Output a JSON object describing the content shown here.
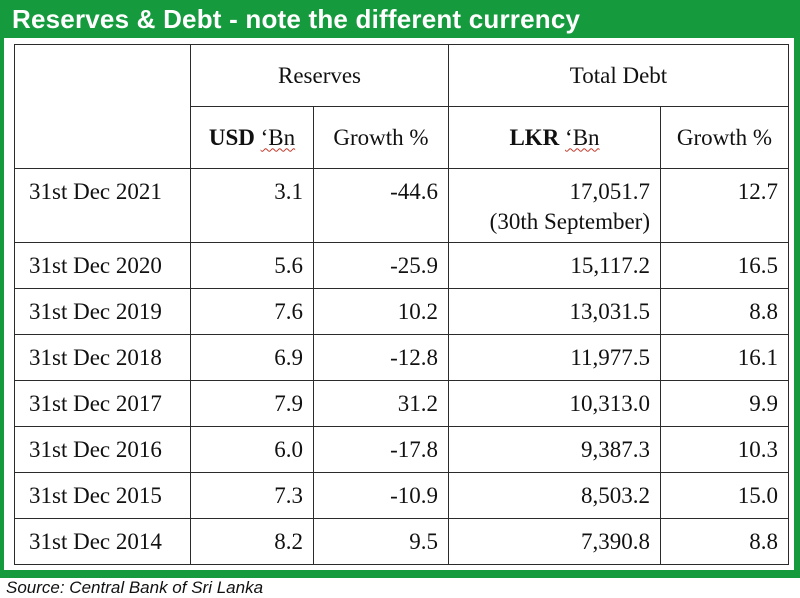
{
  "title": "Reserves & Debt - note the different currency",
  "table": {
    "group_headers": [
      "Reserves",
      "Total Debt"
    ],
    "sub_headers": {
      "usd_strong": "USD",
      "usd_rest": "‘Bn",
      "reserves_growth": "Growth %",
      "lkr_strong": "LKR",
      "lkr_rest": "‘Bn",
      "debt_growth": "Growth %"
    },
    "rows": [
      {
        "date": "31st Dec 2021",
        "reserves": "3.1",
        "reserves_growth": "-44.6",
        "debt": "17,051.7",
        "debt_note": "(30th September)",
        "debt_growth": "12.7"
      },
      {
        "date": "31st Dec 2020",
        "reserves": "5.6",
        "reserves_growth": "-25.9",
        "debt": "15,117.2",
        "debt_growth": "16.5"
      },
      {
        "date": "31st Dec 2019",
        "reserves": "7.6",
        "reserves_growth": "10.2",
        "debt": "13,031.5",
        "debt_growth": "8.8"
      },
      {
        "date": "31st Dec 2018",
        "reserves": "6.9",
        "reserves_growth": "-12.8",
        "debt": "11,977.5",
        "debt_growth": "16.1"
      },
      {
        "date": "31st Dec 2017",
        "reserves": "7.9",
        "reserves_growth": "31.2",
        "debt": "10,313.0",
        "debt_growth": "9.9"
      },
      {
        "date": "31st Dec 2016",
        "reserves": "6.0",
        "reserves_growth": "-17.8",
        "debt": "9,387.3",
        "debt_growth": "10.3"
      },
      {
        "date": "31st Dec 2015",
        "reserves": "7.3",
        "reserves_growth": "-10.9",
        "debt": "8,503.2",
        "debt_growth": "15.0"
      },
      {
        "date": "31st Dec 2014",
        "reserves": "8.2",
        "reserves_growth": "9.5",
        "debt": "7,390.8",
        "debt_growth": "8.8"
      }
    ]
  },
  "source": "Source: Central Bank of Sri Lanka",
  "colors": {
    "frame": "#159a3e",
    "title_text": "#ffffff",
    "border": "#2b2b2b"
  }
}
